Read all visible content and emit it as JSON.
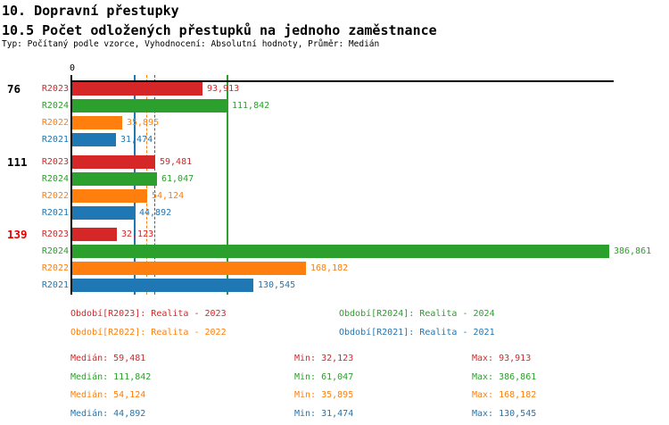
{
  "header": {
    "title": "10. Dopravní přestupky",
    "subtitle": "10.5 Počet odložených přestupků na jednoho zaměstnance",
    "meta": "Typ: Počítaný podle vzorce, Vyhodnocení: Absolutní hodnoty, Průměr: Medián"
  },
  "colors": {
    "series": {
      "R2023": "#d62728",
      "R2024": "#2ca02c",
      "R2022": "#ff7f0e",
      "R2021": "#1f77b4"
    },
    "axis": "#000000",
    "group_label_highlight": "#e00000"
  },
  "chart_data": {
    "type": "bar",
    "orientation": "horizontal",
    "zero_label": "0",
    "series_order": [
      "R2023",
      "R2024",
      "R2022",
      "R2021"
    ],
    "groups": [
      {
        "label": "76",
        "label_color": "#000000",
        "bars": [
          {
            "series": "R2023",
            "value": "93,913",
            "value_num": 93913
          },
          {
            "series": "R2024",
            "value": "111,842",
            "value_num": 111842
          },
          {
            "series": "R2022",
            "value": "35,895",
            "value_num": 35895
          },
          {
            "series": "R2021",
            "value": "31,474",
            "value_num": 31474
          }
        ]
      },
      {
        "label": "111",
        "label_color": "#000000",
        "bars": [
          {
            "series": "R2023",
            "value": "59,481",
            "value_num": 59481
          },
          {
            "series": "R2024",
            "value": "61,047",
            "value_num": 61047
          },
          {
            "series": "R2022",
            "value": "54,124",
            "value_num": 54124
          },
          {
            "series": "R2021",
            "value": "44,892",
            "value_num": 44892
          }
        ]
      },
      {
        "label": "139",
        "label_color": "#e00000",
        "bars": [
          {
            "series": "R2023",
            "value": "32,123",
            "value_num": 32123
          },
          {
            "series": "R2024",
            "value": "386,861",
            "value_num": 386861
          },
          {
            "series": "R2022",
            "value": "168,182",
            "value_num": 168182
          },
          {
            "series": "R2021",
            "value": "130,545",
            "value_num": 130545
          }
        ]
      }
    ],
    "median_lines": [
      {
        "series": "R2021",
        "value_num": 44892,
        "style": "solid"
      },
      {
        "series": "R2022",
        "value_num": 54124,
        "style": "dashed"
      },
      {
        "series": "R2023",
        "value_num": 59481,
        "style": "dashed"
      },
      {
        "series": "R2024",
        "value_num": 111842,
        "style": "solid"
      }
    ],
    "legend": [
      {
        "series": "R2023",
        "text": "Období[R2023]: Realita - 2023"
      },
      {
        "series": "R2024",
        "text": "Období[R2024]: Realita - 2024"
      },
      {
        "series": "R2022",
        "text": "Období[R2022]: Realita - 2022"
      },
      {
        "series": "R2021",
        "text": "Období[R2021]: Realita - 2021"
      }
    ],
    "stats": {
      "labels": {
        "median": "Medián",
        "min": "Min",
        "max": "Max"
      },
      "rows": [
        {
          "series": "R2023",
          "median": "59,481",
          "min": "32,123",
          "max": "93,913"
        },
        {
          "series": "R2024",
          "median": "111,842",
          "min": "61,047",
          "max": "386,861"
        },
        {
          "series": "R2022",
          "median": "54,124",
          "min": "35,895",
          "max": "168,182"
        },
        {
          "series": "R2021",
          "median": "44,892",
          "min": "31,474",
          "max": "130,545"
        }
      ]
    }
  }
}
